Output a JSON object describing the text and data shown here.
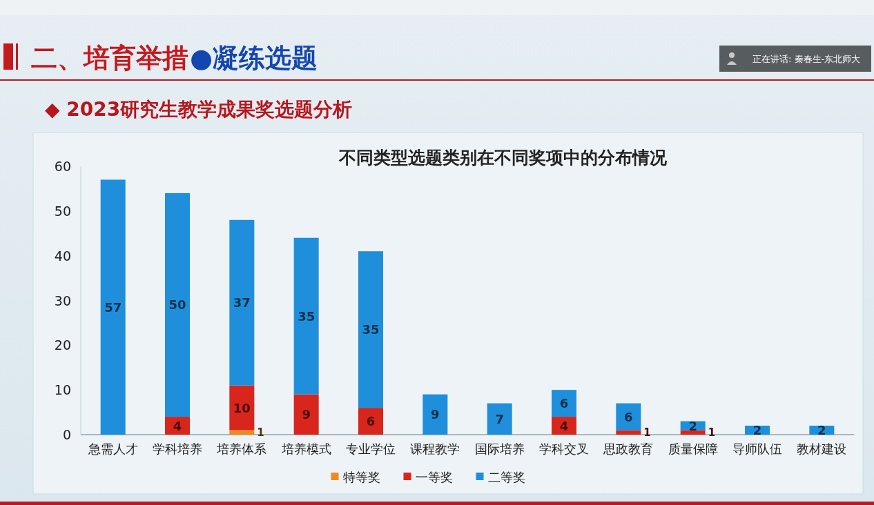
{
  "chart_data": {
    "type": "bar",
    "stacked": true,
    "title": "不同类型选题类别在不同奖项中的分布情况",
    "categories": [
      "急需人才",
      "学科培养",
      "培养体系",
      "培养模式",
      "专业学位",
      "课程教学",
      "国际培养",
      "学科交叉",
      "思政教育",
      "质量保障",
      "导师队伍",
      "教材建设"
    ],
    "series": [
      {
        "name": "特等奖",
        "color": "#ef8a1f",
        "values": [
          0,
          0,
          1,
          0,
          0,
          0,
          0,
          0,
          0,
          0,
          0,
          0
        ],
        "value_labels": [
          null,
          null,
          "1",
          null,
          null,
          null,
          null,
          null,
          null,
          null,
          null,
          null
        ]
      },
      {
        "name": "一等奖",
        "color": "#d8261c",
        "values": [
          0,
          4,
          10,
          9,
          6,
          0,
          0,
          4,
          1,
          1,
          0,
          0
        ],
        "value_labels": [
          null,
          "4",
          "10",
          "9",
          "6",
          null,
          null,
          "4",
          "1",
          "1",
          null,
          null
        ]
      },
      {
        "name": "二等奖",
        "color": "#1f8fdc",
        "values": [
          57,
          50,
          37,
          35,
          35,
          9,
          7,
          6,
          6,
          2,
          2,
          2
        ],
        "value_labels": [
          "57",
          "50",
          "37",
          "35",
          "35",
          "9",
          "7",
          "6",
          "6",
          "2",
          "2",
          "2"
        ]
      }
    ],
    "ylim": [
      0,
      60
    ],
    "yticks": [
      0,
      10,
      20,
      30,
      40,
      50,
      60
    ],
    "legend": "bottom",
    "annotations": [
      "二、培育举措",
      "●凝练选题",
      "◆ 2023研究生教学成果奖选题分析",
      "正在讲话: 秦春生-东北师大"
    ]
  }
}
